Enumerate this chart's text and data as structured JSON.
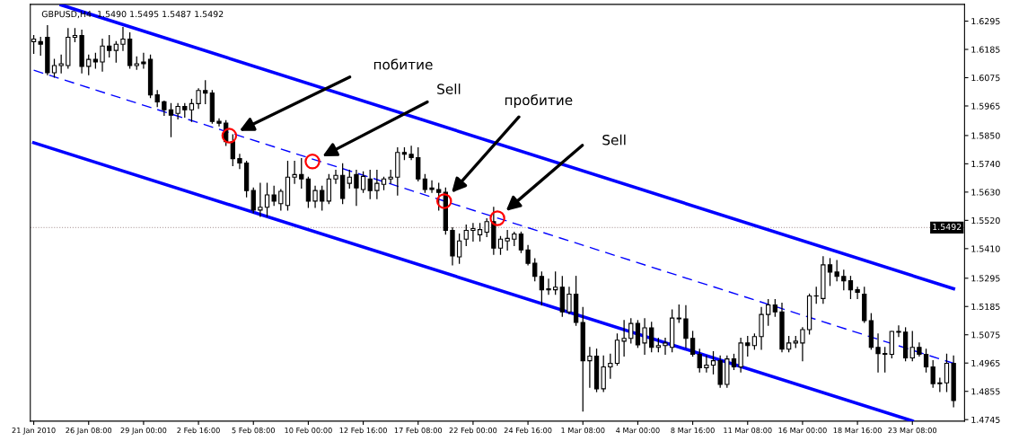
{
  "chart_data": {
    "type": "candlestick",
    "title": "GBPUSD,H4  1.5490 1.5495 1.5487 1.5492",
    "categories": [
      "21 Jan 2010",
      null,
      null,
      null,
      null,
      null,
      null,
      null,
      "26 Jan 08:00",
      null,
      null,
      null,
      null,
      null,
      null,
      null,
      "29 Jan 00:00",
      null,
      null,
      null,
      null,
      null,
      null,
      null,
      "2 Feb 16:00",
      null,
      null,
      null,
      null,
      null,
      null,
      null,
      "5 Feb 08:00",
      null,
      null,
      null,
      null,
      null,
      null,
      null,
      "10 Feb 00:00",
      null,
      null,
      null,
      null,
      null,
      null,
      null,
      "12 Feb 16:00",
      null,
      null,
      null,
      null,
      null,
      null,
      null,
      "17 Feb 08:00",
      null,
      null,
      null,
      null,
      null,
      null,
      null,
      "22 Feb 00:00",
      null,
      null,
      null,
      null,
      null,
      null,
      null,
      "24 Feb 16:00",
      null,
      null,
      null,
      null,
      null,
      null,
      null,
      "1 Mar 08:00",
      null,
      null,
      null,
      null,
      null,
      null,
      null,
      "4 Mar 00:00",
      null,
      null,
      null,
      null,
      null,
      null,
      null,
      "8 Mar 16:00",
      null,
      null,
      null,
      null,
      null,
      null,
      null,
      "11 Mar 08:00",
      null,
      null,
      null,
      null,
      null,
      null,
      null,
      "16 Mar 00:00",
      null,
      null,
      null,
      null,
      null,
      null,
      null,
      "18 Mar 16:00",
      null,
      null,
      null,
      null,
      null,
      null,
      null,
      "23 Mar 08:00",
      null,
      null,
      null,
      null,
      null,
      null
    ],
    "ohlc": [
      [
        1.6215,
        1.6239,
        1.617,
        1.6225
      ],
      [
        1.6215,
        1.6232,
        1.6163,
        1.6205
      ],
      [
        1.6232,
        1.6277,
        1.6087,
        1.6094
      ],
      [
        1.6094,
        1.6146,
        1.6077,
        1.6122
      ],
      [
        1.6122,
        1.6163,
        1.6094,
        1.6129
      ],
      [
        1.6122,
        1.6266,
        1.6112,
        1.6232
      ],
      [
        1.6232,
        1.6266,
        1.6215,
        1.6239
      ],
      [
        1.6239,
        1.626,
        1.6094,
        1.6119
      ],
      [
        1.6119,
        1.6163,
        1.6087,
        1.6146
      ],
      [
        1.6146,
        1.617,
        1.6112,
        1.6136
      ],
      [
        1.6136,
        1.6225,
        1.6101,
        1.6198
      ],
      [
        1.6198,
        1.6239,
        1.6156,
        1.6181
      ],
      [
        1.6181,
        1.6215,
        1.6136,
        1.6205
      ],
      [
        1.6205,
        1.627,
        1.6181,
        1.6225
      ],
      [
        1.6225,
        1.6249,
        1.6112,
        1.6122
      ],
      [
        1.6122,
        1.6156,
        1.6108,
        1.6129
      ],
      [
        1.6136,
        1.617,
        1.6112,
        1.6129
      ],
      [
        1.6146,
        1.6163,
        1.5998,
        1.6008
      ],
      [
        1.6008,
        1.6025,
        1.5963,
        1.5981
      ],
      [
        1.5981,
        1.5984,
        1.5929,
        1.595
      ],
      [
        1.595,
        1.5974,
        1.5846,
        1.5929
      ],
      [
        1.5936,
        1.5974,
        1.5915,
        1.5963
      ],
      [
        1.5963,
        1.5974,
        1.5922,
        1.595
      ],
      [
        1.595,
        1.5991,
        1.5905,
        1.5974
      ],
      [
        1.5974,
        1.6032,
        1.5956,
        1.6025
      ],
      [
        1.6025,
        1.6063,
        1.5974,
        1.6015
      ],
      [
        1.6015,
        1.6025,
        1.5898,
        1.5905
      ],
      [
        1.5905,
        1.5915,
        1.5888,
        1.5898
      ],
      [
        1.5898,
        1.5908,
        1.5812,
        1.5826
      ],
      [
        1.5826,
        1.5853,
        1.5733,
        1.576
      ],
      [
        1.576,
        1.5777,
        1.5722,
        1.5743
      ],
      [
        1.5743,
        1.575,
        1.5612,
        1.5636
      ],
      [
        1.5636,
        1.5646,
        1.555,
        1.556
      ],
      [
        1.556,
        1.5664,
        1.5536,
        1.5571
      ],
      [
        1.5571,
        1.5664,
        1.5536,
        1.5619
      ],
      [
        1.5619,
        1.5653,
        1.5578,
        1.5595
      ],
      [
        1.5585,
        1.564,
        1.556,
        1.5633
      ],
      [
        1.5578,
        1.575,
        1.556,
        1.5688
      ],
      [
        1.5688,
        1.575,
        1.5664,
        1.5698
      ],
      [
        1.5698,
        1.576,
        1.5646,
        1.5681
      ],
      [
        1.5681,
        1.5688,
        1.5571,
        1.5595
      ],
      [
        1.5595,
        1.5653,
        1.5571,
        1.5636
      ],
      [
        1.5636,
        1.5653,
        1.556,
        1.5595
      ],
      [
        1.5595,
        1.5698,
        1.5585,
        1.5681
      ],
      [
        1.5681,
        1.5715,
        1.5664,
        1.5695
      ],
      [
        1.5695,
        1.574,
        1.5585,
        1.5605
      ],
      [
        1.5664,
        1.5715,
        1.5646,
        1.5688
      ],
      [
        1.5698,
        1.5715,
        1.5578,
        1.5646
      ],
      [
        1.564,
        1.5709,
        1.5629,
        1.5691
      ],
      [
        1.5681,
        1.5715,
        1.5605,
        1.5636
      ],
      [
        1.5636,
        1.5715,
        1.5605,
        1.5664
      ],
      [
        1.566,
        1.5688,
        1.564,
        1.5681
      ],
      [
        1.5681,
        1.5715,
        1.5664,
        1.5688
      ],
      [
        1.5688,
        1.5802,
        1.5619,
        1.5784
      ],
      [
        1.5784,
        1.5802,
        1.5757,
        1.5777
      ],
      [
        1.5777,
        1.5808,
        1.5757,
        1.5764
      ],
      [
        1.5764,
        1.5802,
        1.5674,
        1.5681
      ],
      [
        1.5681,
        1.5698,
        1.5629,
        1.564
      ],
      [
        1.5646,
        1.5674,
        1.5629,
        1.564
      ],
      [
        1.564,
        1.5664,
        1.556,
        1.5629
      ],
      [
        1.5629,
        1.5646,
        1.5467,
        1.5481
      ],
      [
        1.5481,
        1.5491,
        1.5347,
        1.5382
      ],
      [
        1.5378,
        1.5467,
        1.5353,
        1.544
      ],
      [
        1.5447,
        1.5502,
        1.5422,
        1.5481
      ],
      [
        1.5481,
        1.5508,
        1.544,
        1.5488
      ],
      [
        1.5464,
        1.5508,
        1.544,
        1.5484
      ],
      [
        1.5474,
        1.5526,
        1.5457,
        1.5515
      ],
      [
        1.5515,
        1.5571,
        1.5388,
        1.5412
      ],
      [
        1.5412,
        1.5457,
        1.5388,
        1.5447
      ],
      [
        1.544,
        1.5481,
        1.5405,
        1.545
      ],
      [
        1.5447,
        1.5474,
        1.5422,
        1.5467
      ],
      [
        1.5467,
        1.5474,
        1.5395,
        1.5405
      ],
      [
        1.5405,
        1.5422,
        1.5347,
        1.5353
      ],
      [
        1.5353,
        1.5371,
        1.5285,
        1.5302
      ],
      [
        1.5302,
        1.5319,
        1.5191,
        1.525
      ],
      [
        1.525,
        1.5291,
        1.5233,
        1.5254
      ],
      [
        1.525,
        1.5319,
        1.5233,
        1.526
      ],
      [
        1.526,
        1.5302,
        1.5147,
        1.5164
      ],
      [
        1.5164,
        1.526,
        1.5157,
        1.5233
      ],
      [
        1.5233,
        1.5302,
        1.5112,
        1.5123
      ],
      [
        1.5123,
        1.5181,
        1.4778,
        1.4974
      ],
      [
        1.4974,
        1.5026,
        1.4871,
        1.4992
      ],
      [
        1.4992,
        1.5019,
        1.4854,
        1.4865
      ],
      [
        1.4865,
        1.4992,
        1.4854,
        1.495
      ],
      [
        1.495,
        1.4999,
        1.4906,
        1.4964
      ],
      [
        1.4964,
        1.5078,
        1.4957,
        1.5054
      ],
      [
        1.505,
        1.513,
        1.4992,
        1.5061
      ],
      [
        1.5061,
        1.5137,
        1.5043,
        1.5119
      ],
      [
        1.5119,
        1.513,
        1.5026,
        1.5036
      ],
      [
        1.5043,
        1.5137,
        1.4999,
        1.5102
      ],
      [
        1.5102,
        1.5123,
        1.5009,
        1.5026
      ],
      [
        1.5026,
        1.5061,
        1.5009,
        1.5033
      ],
      [
        1.5033,
        1.5061,
        1.4999,
        1.5043
      ],
      [
        1.5026,
        1.5171,
        1.5009,
        1.514
      ],
      [
        1.514,
        1.5191,
        1.5123,
        1.5137
      ],
      [
        1.5137,
        1.5188,
        1.5026,
        1.5061
      ],
      [
        1.5061,
        1.5088,
        1.4992,
        1.4999
      ],
      [
        1.4999,
        1.5019,
        1.493,
        1.4947
      ],
      [
        1.4947,
        1.4992,
        1.493,
        1.4957
      ],
      [
        1.4957,
        1.5009,
        1.4923,
        1.4974
      ],
      [
        1.4974,
        1.4992,
        1.4871,
        1.4882
      ],
      [
        1.4882,
        1.4992,
        1.4871,
        1.4981
      ],
      [
        1.4981,
        1.4999,
        1.494,
        1.495
      ],
      [
        1.495,
        1.5061,
        1.493,
        1.5043
      ],
      [
        1.5043,
        1.5068,
        1.4992,
        1.5033
      ],
      [
        1.5033,
        1.5078,
        1.5019,
        1.5068
      ],
      [
        1.5068,
        1.5181,
        1.5019,
        1.5154
      ],
      [
        1.5154,
        1.5212,
        1.5112,
        1.5191
      ],
      [
        1.5191,
        1.5212,
        1.5147,
        1.5164
      ],
      [
        1.5164,
        1.5198,
        1.5009,
        1.5019
      ],
      [
        1.5019,
        1.5068,
        1.5009,
        1.5043
      ],
      [
        1.5043,
        1.5068,
        1.5026,
        1.505
      ],
      [
        1.5043,
        1.5102,
        1.4974,
        1.5095
      ],
      [
        1.5095,
        1.5233,
        1.5078,
        1.5226
      ],
      [
        1.5226,
        1.526,
        1.5198,
        1.5226
      ],
      [
        1.5216,
        1.5378,
        1.5198,
        1.5347
      ],
      [
        1.5347,
        1.5371,
        1.5267,
        1.5319
      ],
      [
        1.5319,
        1.5364,
        1.5285,
        1.5302
      ],
      [
        1.5302,
        1.5326,
        1.525,
        1.5285
      ],
      [
        1.5285,
        1.5302,
        1.5216,
        1.525
      ],
      [
        1.525,
        1.526,
        1.5216,
        1.524
      ],
      [
        1.5233,
        1.526,
        1.5123,
        1.513
      ],
      [
        1.513,
        1.5157,
        1.5019,
        1.5026
      ],
      [
        1.5026,
        1.5078,
        1.493,
        1.5002
      ],
      [
        1.5002,
        1.5026,
        1.493,
        1.4999
      ],
      [
        1.4999,
        1.5088,
        1.4985,
        1.5088
      ],
      [
        1.5088,
        1.5109,
        1.5068,
        1.5085
      ],
      [
        1.5085,
        1.5102,
        1.4974,
        1.4985
      ],
      [
        1.4985,
        1.5088,
        1.4974,
        1.5026
      ],
      [
        1.5026,
        1.5043,
        1.4992,
        1.4999
      ],
      [
        1.4999,
        1.5019,
        1.493,
        1.495
      ],
      [
        1.495,
        1.4974,
        1.4871,
        1.4885
      ],
      [
        1.4885,
        1.4906,
        1.4854,
        1.4888
      ],
      [
        1.4888,
        1.4999,
        1.4854,
        1.4964
      ],
      [
        1.4964,
        1.4992,
        1.4795,
        1.4819
      ]
    ],
    "series": [
      {
        "type": "line",
        "values": [
          null,
          null,
          null,
          null,
          1.6358,
          null,
          null,
          null,
          null,
          null,
          null,
          null,
          null,
          null,
          null,
          null,
          null,
          null,
          null,
          null,
          null,
          null,
          null,
          null,
          null,
          null,
          null,
          null,
          null,
          null,
          null,
          null,
          null,
          null,
          null,
          null,
          null,
          null,
          null,
          null,
          null,
          null,
          null,
          null,
          null,
          null,
          null,
          null,
          null,
          null,
          null,
          null,
          null,
          null,
          null,
          null,
          null,
          null,
          null,
          null,
          null,
          null,
          null,
          null,
          null,
          null,
          null,
          null,
          null,
          null,
          null,
          null,
          null,
          null,
          null,
          null,
          null,
          null,
          null,
          null,
          null,
          null,
          null,
          null,
          null,
          null,
          null,
          null,
          null,
          null,
          null,
          null,
          null,
          null,
          null,
          null,
          null,
          null,
          null,
          null,
          null,
          null,
          null,
          null,
          null,
          null,
          null,
          null,
          null,
          null,
          null,
          null,
          null,
          null,
          null,
          null,
          null,
          null,
          null,
          null,
          null,
          null,
          null,
          null,
          null,
          null,
          null,
          null,
          null,
          null,
          null,
          null,
          null,
          null,
          1.5254
        ],
        "color": "#0000ff",
        "line_style": "solid"
      },
      {
        "type": "line",
        "values": [
          1.6104,
          null,
          null,
          null,
          null,
          null,
          null,
          null,
          null,
          null,
          null,
          null,
          null,
          null,
          null,
          null,
          null,
          null,
          null,
          null,
          null,
          null,
          null,
          null,
          null,
          null,
          null,
          null,
          null,
          null,
          null,
          null,
          null,
          null,
          null,
          null,
          null,
          null,
          null,
          null,
          null,
          null,
          null,
          null,
          null,
          null,
          null,
          null,
          null,
          null,
          null,
          null,
          null,
          null,
          null,
          null,
          null,
          null,
          null,
          null,
          null,
          null,
          null,
          null,
          null,
          null,
          null,
          null,
          null,
          null,
          null,
          null,
          null,
          null,
          null,
          null,
          null,
          null,
          null,
          null,
          null,
          null,
          null,
          null,
          null,
          null,
          null,
          null,
          null,
          null,
          null,
          null,
          null,
          null,
          null,
          null,
          null,
          null,
          null,
          null,
          null,
          null,
          null,
          null,
          null,
          null,
          null,
          null,
          null,
          null,
          null,
          null,
          null,
          null,
          null,
          null,
          null,
          null,
          null,
          null,
          null,
          null,
          null,
          null,
          null,
          null,
          null,
          null,
          null,
          null,
          null,
          null,
          null,
          null,
          1.4964
        ],
        "color": "#0000ff",
        "line_style": "dashed"
      },
      {
        "type": "line",
        "values": [
          1.5822,
          null,
          null,
          null,
          null,
          null,
          null,
          null,
          null,
          null,
          null,
          null,
          null,
          null,
          null,
          null,
          null,
          null,
          null,
          null,
          null,
          null,
          null,
          null,
          null,
          null,
          null,
          null,
          null,
          null,
          null,
          null,
          null,
          null,
          null,
          null,
          null,
          null,
          null,
          null,
          null,
          null,
          null,
          null,
          null,
          null,
          null,
          null,
          null,
          null,
          null,
          null,
          null,
          null,
          null,
          null,
          null,
          null,
          null,
          null,
          null,
          null,
          null,
          null,
          null,
          null,
          null,
          null,
          null,
          null,
          null,
          null,
          null,
          null,
          null,
          null,
          null,
          null,
          null,
          null,
          null,
          null,
          null,
          null,
          null,
          null,
          null,
          null,
          null,
          null,
          null,
          null,
          null,
          null,
          null,
          null,
          null,
          null,
          null,
          null,
          null,
          null,
          null,
          null,
          null,
          null,
          null,
          null,
          null,
          null,
          null,
          null,
          null,
          null,
          null,
          null,
          null,
          null,
          null,
          null,
          null,
          null,
          null,
          null,
          null,
          null,
          null,
          null,
          1.474,
          null,
          null,
          null,
          null,
          null,
          null
        ],
        "color": "#0000ff",
        "line_style": "solid"
      }
    ],
    "ylim": [
      1.4739,
      1.636
    ],
    "yticks": [
      1.4745,
      1.4855,
      1.4965,
      1.5075,
      1.5185,
      1.5295,
      {
        "value": 1.541,
        "label": "1.5410"
      },
      {
        "value": 1.552,
        "label": "1.5520"
      },
      {
        "value": 1.563,
        "label": "1.5630"
      },
      {
        "value": 1.574,
        "label": "1.5740"
      },
      {
        "value": 1.585,
        "label": "1.5850"
      },
      1.5965,
      1.6075,
      1.6185,
      1.6295
    ],
    "ref_lines": [
      {
        "axis": "y",
        "value": 1.5492,
        "label": "1.5492",
        "color": "#b8a8a8",
        "line_style": "dotted"
      }
    ],
    "annotations": [
      "побитие",
      "Sell",
      "пробитие",
      "Sell"
    ],
    "grid": false,
    "legend": false
  }
}
